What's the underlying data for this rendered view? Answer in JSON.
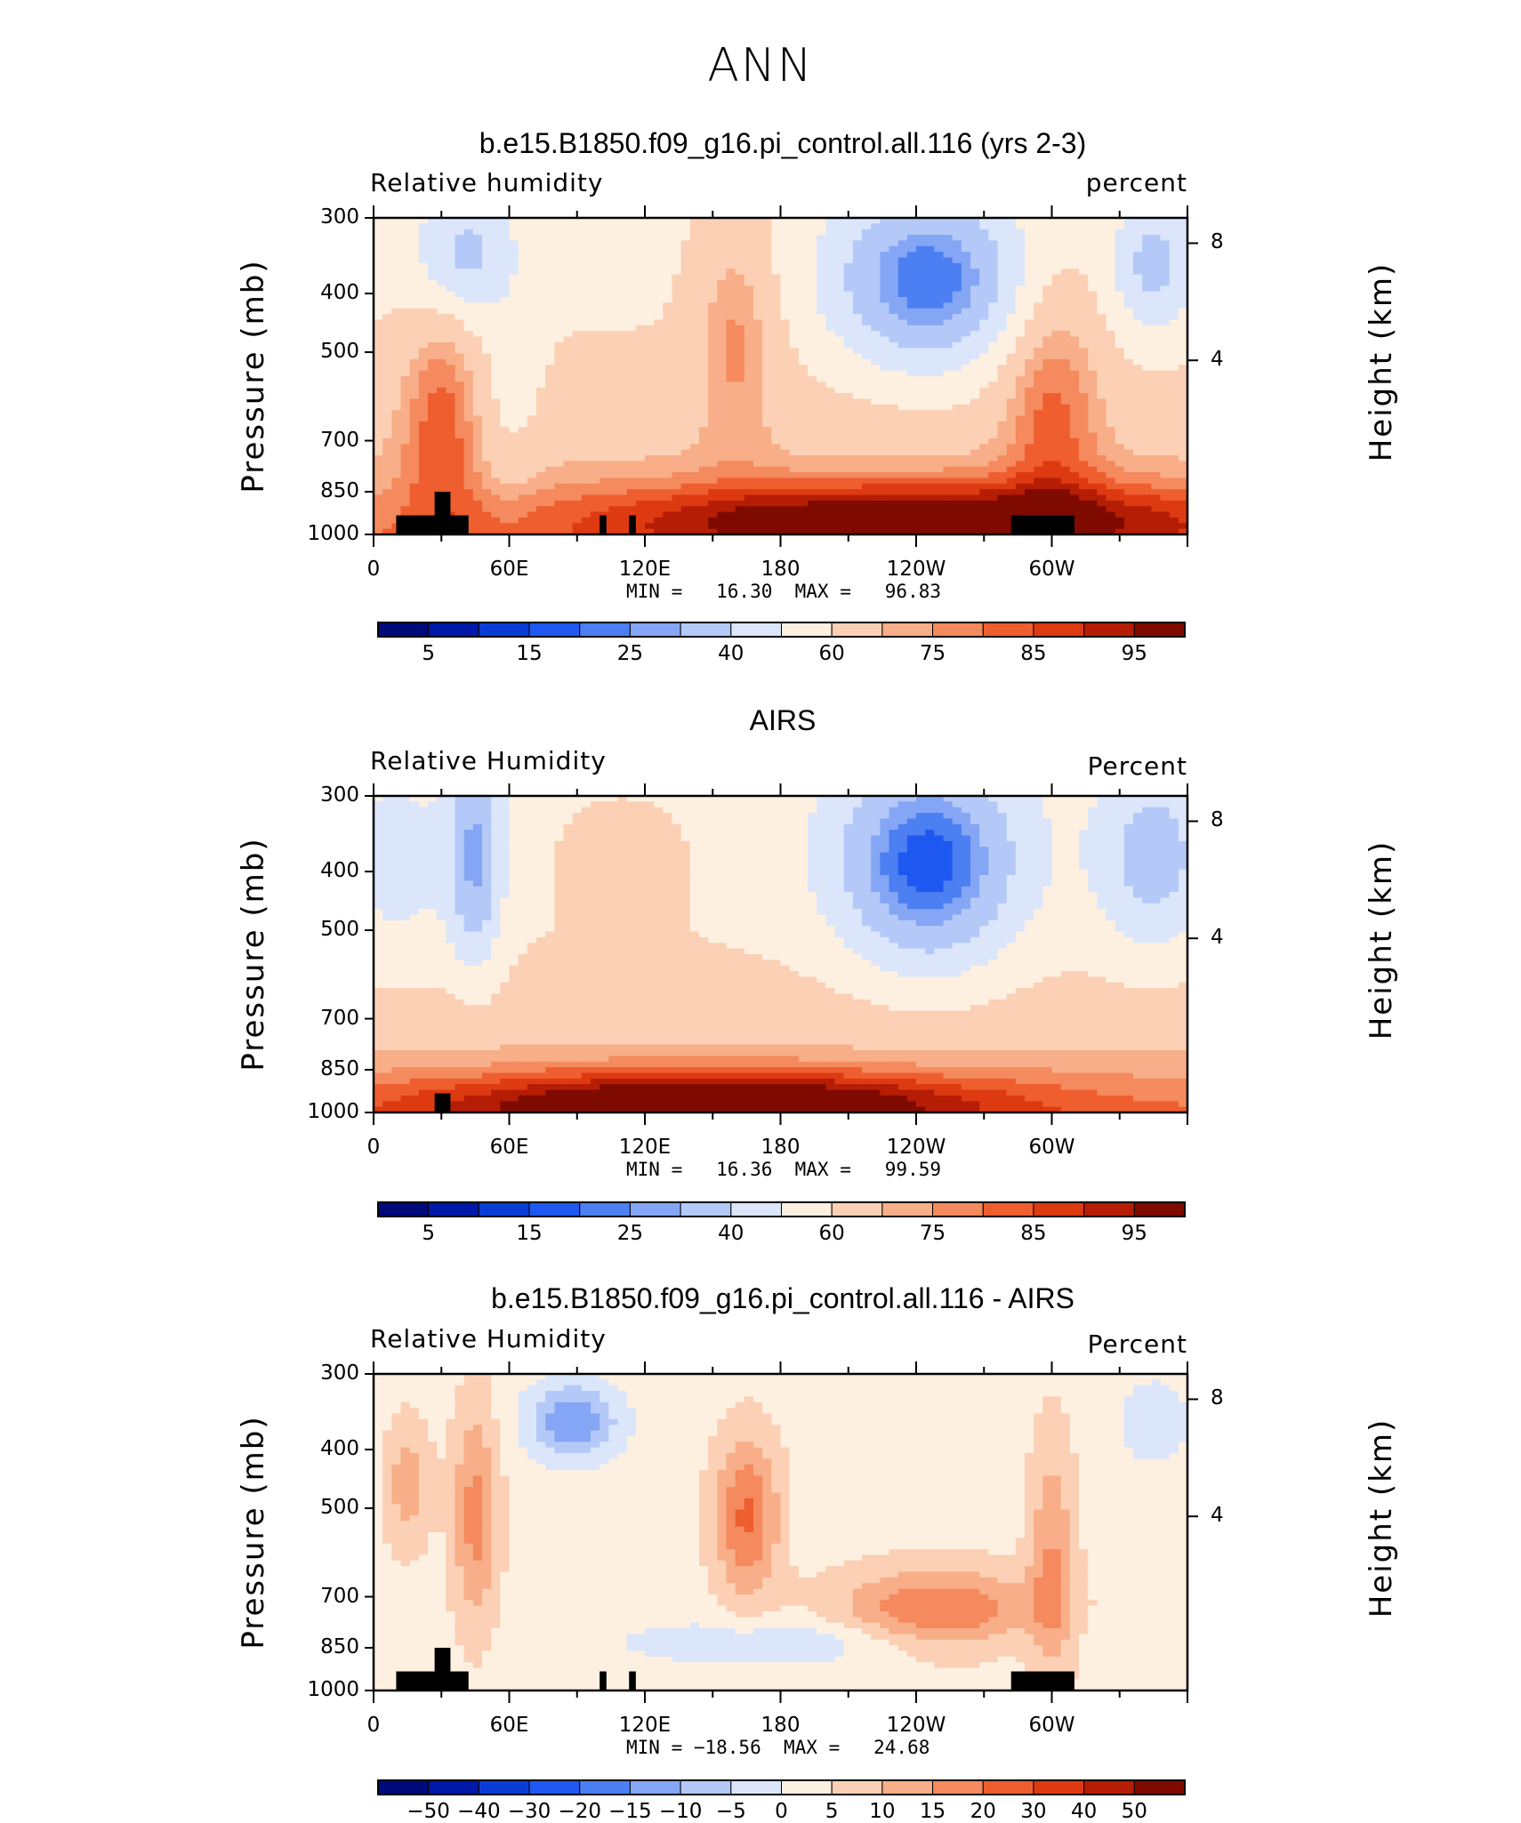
{
  "figure_title": "ANN",
  "colors": {
    "palette": [
      "#000a7a",
      "#0019a8",
      "#0a3cd6",
      "#1f58f0",
      "#4b7ff2",
      "#84a6f5",
      "#b4c9f7",
      "#dbe6fb",
      "#fdf0e1",
      "#fbd0b4",
      "#f8ae88",
      "#f48a5e",
      "#ee5e2e",
      "#de3a12",
      "#b51d05",
      "#7f0a00"
    ],
    "land_mask": "#000000"
  },
  "chart_data": [
    {
      "type": "heatmap",
      "title": "b.e15.B1850.f09_g16.pi_control.all.116 (yrs 2-3)",
      "left_label": "Relative humidity",
      "right_label": "percent",
      "ylabel": "Pressure (mb)",
      "ylabel_right": "Height (km)",
      "x_ticks": [
        "0",
        "60E",
        "120E",
        "180",
        "120W",
        "60W"
      ],
      "x_range": [
        0,
        360
      ],
      "y_ticks": [
        "300",
        "400",
        "500",
        "700",
        "850",
        "1000"
      ],
      "y_range": [
        300,
        1000
      ],
      "height_ticks": [
        "8",
        "4"
      ],
      "min_max_text": "MIN =   16.30  MAX =   96.83",
      "min": 16.3,
      "max": 96.83,
      "colorbar_labels": [
        "5",
        "15",
        "25",
        "40",
        "60",
        "75",
        "85",
        "95"
      ],
      "field": "model"
    },
    {
      "type": "heatmap",
      "title": "AIRS",
      "left_label": "Relative Humidity",
      "right_label": "Percent",
      "ylabel": "Pressure (mb)",
      "ylabel_right": "Height (km)",
      "x_ticks": [
        "0",
        "60E",
        "120E",
        "180",
        "120W",
        "60W"
      ],
      "x_range": [
        0,
        360
      ],
      "y_ticks": [
        "300",
        "400",
        "500",
        "700",
        "850",
        "1000"
      ],
      "y_range": [
        300,
        1000
      ],
      "height_ticks": [
        "8",
        "4"
      ],
      "min_max_text": "MIN =   16.36  MAX =   99.59",
      "min": 16.36,
      "max": 99.59,
      "colorbar_labels": [
        "5",
        "15",
        "25",
        "40",
        "60",
        "75",
        "85",
        "95"
      ],
      "field": "obs"
    },
    {
      "type": "heatmap",
      "title": "b.e15.B1850.f09_g16.pi_control.all.116 - AIRS",
      "left_label": "Relative Humidity",
      "right_label": "Percent",
      "ylabel": "Pressure (mb)",
      "ylabel_right": "Height (km)",
      "x_ticks": [
        "0",
        "60E",
        "120E",
        "180",
        "120W",
        "60W"
      ],
      "x_range": [
        0,
        360
      ],
      "y_ticks": [
        "300",
        "400",
        "500",
        "700",
        "850",
        "1000"
      ],
      "y_range": [
        300,
        1000
      ],
      "height_ticks": [
        "8",
        "4"
      ],
      "min_max_text": "MIN = −18.56  MAX =   24.68",
      "min": -18.56,
      "max": 24.68,
      "colorbar_labels": [
        "−50",
        "−40",
        "−30",
        "−20",
        "−15",
        "−10",
        "−5",
        "0",
        "5",
        "10",
        "15",
        "20",
        "30",
        "40",
        "50"
      ],
      "field": "diff"
    }
  ]
}
